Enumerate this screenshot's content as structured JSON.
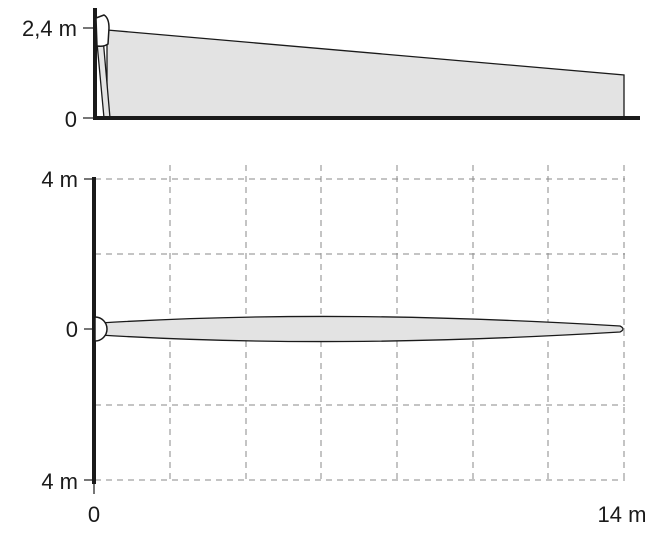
{
  "side_view": {
    "label_top": "2,4 m",
    "label_bottom": "0"
  },
  "top_view": {
    "label_top": "4 m",
    "label_middle": "0",
    "label_bottom": "4 m",
    "label_x_start": "0",
    "label_x_end": "14 m"
  },
  "colors": {
    "zone_fill": "#e3e3e3",
    "lines": "#1a1a1a",
    "grid": "#8a8a8a"
  }
}
